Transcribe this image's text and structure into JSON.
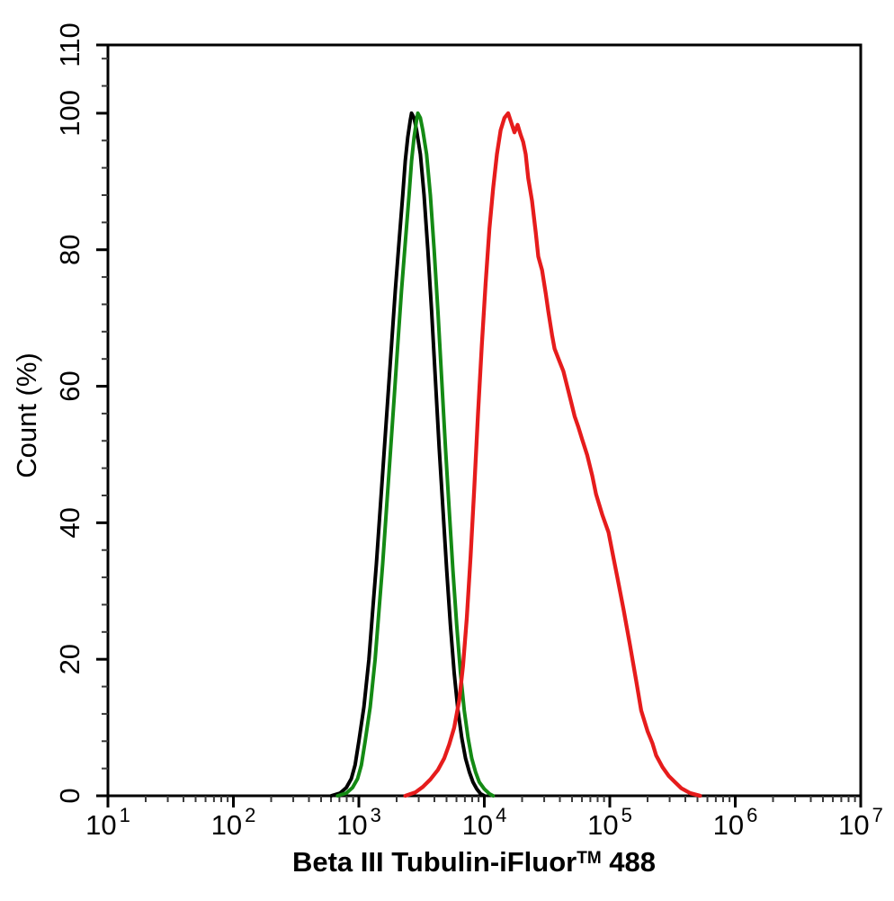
{
  "chart_data": {
    "type": "line",
    "chart_kind": "flow-cytometry-overlay-histogram",
    "title": "",
    "xlabel": "Beta III Tubulin-iFluor™ 488",
    "xlabel_parts": {
      "main": "Beta III Tubulin-iFluor",
      "sup": "TM",
      "suffix": " 488"
    },
    "ylabel": "Count (%)",
    "background": "#ffffff",
    "axis_color": "#000000",
    "grid": false,
    "legend": null,
    "x_axis": {
      "scale": "log10",
      "min_log": 1,
      "max_log": 7,
      "tick_label_base": "10",
      "tick_label_exponents": [
        "1",
        "2",
        "3",
        "4",
        "5",
        "6",
        "7"
      ],
      "major_tick_logs": [
        1,
        2,
        3,
        4,
        5,
        6,
        7
      ],
      "minor_tick_mantissas": [
        2,
        3,
        4,
        5,
        6,
        7,
        8,
        9
      ]
    },
    "y_axis": {
      "min": 0,
      "max": 110,
      "major_ticks": [
        0,
        20,
        40,
        60,
        80,
        100,
        110
      ],
      "major_tick_labels": [
        "0",
        "20",
        "40",
        "60",
        "80",
        "100",
        "110"
      ],
      "minor_tick_step": 4
    },
    "series": [
      {
        "name": "black-curve",
        "color": "#000000",
        "stroke_width": 4,
        "peak_log_x": 3.42,
        "peak_pct": 100,
        "points_log_pct": [
          [
            2.78,
            0
          ],
          [
            2.85,
            0.4
          ],
          [
            2.9,
            1.2
          ],
          [
            2.94,
            2.5
          ],
          [
            2.97,
            4.5
          ],
          [
            3.0,
            8
          ],
          [
            3.04,
            13
          ],
          [
            3.08,
            20
          ],
          [
            3.11,
            27
          ],
          [
            3.14,
            34
          ],
          [
            3.17,
            42
          ],
          [
            3.2,
            50
          ],
          [
            3.23,
            58
          ],
          [
            3.26,
            66
          ],
          [
            3.29,
            74
          ],
          [
            3.32,
            81
          ],
          [
            3.35,
            88
          ],
          [
            3.37,
            93
          ],
          [
            3.39,
            96.5
          ],
          [
            3.41,
            99
          ],
          [
            3.42,
            100
          ],
          [
            3.44,
            99.3
          ],
          [
            3.46,
            97.5
          ],
          [
            3.49,
            94
          ],
          [
            3.52,
            88
          ],
          [
            3.55,
            80
          ],
          [
            3.58,
            71
          ],
          [
            3.61,
            61
          ],
          [
            3.64,
            51
          ],
          [
            3.67,
            42
          ],
          [
            3.7,
            33
          ],
          [
            3.73,
            25
          ],
          [
            3.76,
            18
          ],
          [
            3.79,
            12.5
          ],
          [
            3.82,
            8.5
          ],
          [
            3.85,
            5.5
          ],
          [
            3.88,
            3.5
          ],
          [
            3.91,
            2
          ],
          [
            3.94,
            1
          ],
          [
            3.97,
            0.3
          ],
          [
            4.0,
            0
          ]
        ]
      },
      {
        "name": "green-curve",
        "color": "#148a14",
        "stroke_width": 4,
        "peak_log_x": 3.47,
        "peak_pct": 100,
        "points_log_pct": [
          [
            2.83,
            0
          ],
          [
            2.9,
            0.4
          ],
          [
            2.95,
            1.2
          ],
          [
            2.99,
            2.5
          ],
          [
            3.02,
            4.5
          ],
          [
            3.05,
            8
          ],
          [
            3.09,
            13
          ],
          [
            3.13,
            20
          ],
          [
            3.16,
            27
          ],
          [
            3.19,
            34
          ],
          [
            3.22,
            42
          ],
          [
            3.25,
            50
          ],
          [
            3.28,
            58
          ],
          [
            3.31,
            66
          ],
          [
            3.34,
            74
          ],
          [
            3.37,
            81
          ],
          [
            3.4,
            88
          ],
          [
            3.42,
            93
          ],
          [
            3.44,
            96.5
          ],
          [
            3.46,
            99
          ],
          [
            3.47,
            100
          ],
          [
            3.49,
            99.3
          ],
          [
            3.51,
            97.5
          ],
          [
            3.54,
            94
          ],
          [
            3.57,
            88
          ],
          [
            3.6,
            80
          ],
          [
            3.63,
            71
          ],
          [
            3.66,
            61
          ],
          [
            3.69,
            51
          ],
          [
            3.72,
            42
          ],
          [
            3.75,
            33
          ],
          [
            3.78,
            25
          ],
          [
            3.81,
            18
          ],
          [
            3.84,
            12.5
          ],
          [
            3.87,
            8.5
          ],
          [
            3.9,
            5.5
          ],
          [
            3.93,
            3.5
          ],
          [
            3.96,
            2
          ],
          [
            4.0,
            1
          ],
          [
            4.04,
            0.3
          ],
          [
            4.07,
            0
          ]
        ]
      },
      {
        "name": "red-curve",
        "color": "#e61c1c",
        "stroke_width": 4.3,
        "peak_log_x": 4.19,
        "peak_pct": 100,
        "points_log_pct": [
          [
            3.37,
            0
          ],
          [
            3.45,
            0.5
          ],
          [
            3.51,
            1.3
          ],
          [
            3.57,
            2.4
          ],
          [
            3.63,
            3.8
          ],
          [
            3.68,
            5.5
          ],
          [
            3.72,
            7.5
          ],
          [
            3.76,
            10
          ],
          [
            3.8,
            14
          ],
          [
            3.83,
            19
          ],
          [
            3.86,
            26
          ],
          [
            3.89,
            35
          ],
          [
            3.92,
            45
          ],
          [
            3.95,
            56
          ],
          [
            3.98,
            66
          ],
          [
            4.01,
            75
          ],
          [
            4.04,
            83
          ],
          [
            4.07,
            89
          ],
          [
            4.1,
            94
          ],
          [
            4.13,
            97.5
          ],
          [
            4.16,
            99.3
          ],
          [
            4.19,
            100
          ],
          [
            4.215,
            98.6
          ],
          [
            4.24,
            97.2
          ],
          [
            4.265,
            98.3
          ],
          [
            4.29,
            96.8
          ],
          [
            4.31,
            95.8
          ],
          [
            4.33,
            94
          ],
          [
            4.35,
            90.5
          ],
          [
            4.38,
            87.2
          ],
          [
            4.41,
            82.5
          ],
          [
            4.43,
            79
          ],
          [
            4.46,
            77
          ],
          [
            4.49,
            73.5
          ],
          [
            4.51,
            71
          ],
          [
            4.54,
            67.5
          ],
          [
            4.56,
            65.5
          ],
          [
            4.6,
            63.6
          ],
          [
            4.63,
            62.2
          ],
          [
            4.66,
            60
          ],
          [
            4.69,
            57.8
          ],
          [
            4.72,
            55.6
          ],
          [
            4.75,
            54
          ],
          [
            4.78,
            52.2
          ],
          [
            4.82,
            49.9
          ],
          [
            4.86,
            46.9
          ],
          [
            4.89,
            44.2
          ],
          [
            4.94,
            41.2
          ],
          [
            4.99,
            38.6
          ],
          [
            5.03,
            34.8
          ],
          [
            5.06,
            32
          ],
          [
            5.11,
            27.3
          ],
          [
            5.16,
            22.2
          ],
          [
            5.21,
            16.9
          ],
          [
            5.25,
            12.5
          ],
          [
            5.3,
            9.5
          ],
          [
            5.34,
            7.7
          ],
          [
            5.37,
            5.9
          ],
          [
            5.42,
            4.2
          ],
          [
            5.47,
            2.9
          ],
          [
            5.52,
            2
          ],
          [
            5.57,
            1.1
          ],
          [
            5.64,
            0.4
          ],
          [
            5.72,
            0
          ]
        ]
      }
    ]
  }
}
